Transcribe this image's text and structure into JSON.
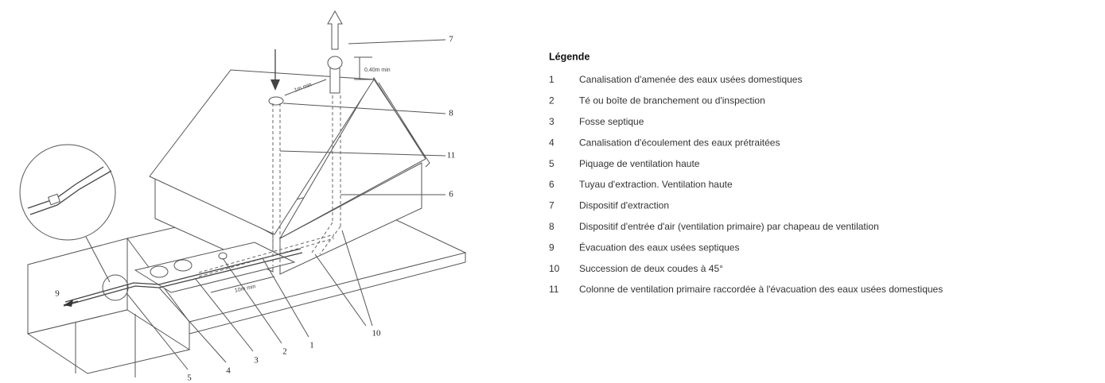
{
  "legend": {
    "title": "Légende",
    "items": [
      {
        "number": 1,
        "text": "Canalisation d'amenée des eaux usées domestiques"
      },
      {
        "number": 2,
        "text": "Té ou boîte de branchement ou d'inspection"
      },
      {
        "number": 3,
        "text": "Fosse septique"
      },
      {
        "number": 4,
        "text": "Canalisation d'écoulement des eaux prétraitées"
      },
      {
        "number": 5,
        "text": "Piquage de ventilation haute"
      },
      {
        "number": 6,
        "text": "Tuyau d'extraction. Ventilation haute"
      },
      {
        "number": 7,
        "text": "Dispositif d'extraction"
      },
      {
        "number": 8,
        "text": "Dispositif d'entrée d'air (ventilation primaire) par chapeau de ventilation"
      },
      {
        "number": 9,
        "text": "Évacuation des eaux usées septiques"
      },
      {
        "number": 10,
        "text": "Succession de deux coudes à 45°"
      },
      {
        "number": 11,
        "text": "Colonne de ventilation primaire raccordée à l'évacuation des eaux usées domestiques"
      }
    ]
  },
  "callouts": [
    7,
    8,
    11,
    6,
    10,
    9,
    5,
    4,
    3,
    2,
    1
  ],
  "dimensions": [
    "0,40m min",
    "1m min",
    "10m min"
  ]
}
